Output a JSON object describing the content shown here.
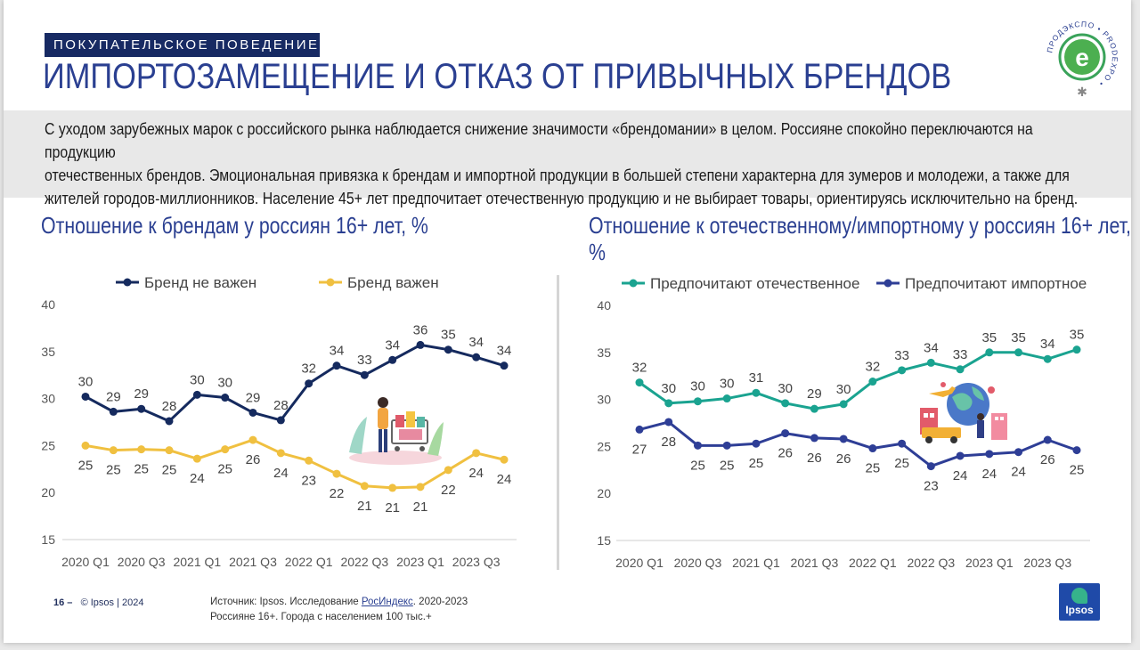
{
  "header": {
    "tag": "ПОКУПАТЕЛЬСКОЕ ПОВЕДЕНИЕ",
    "title": "ИМПОРТОЗАМЕЩЕНИЕ И ОТКАЗ ОТ ПРИВЫЧНЫХ БРЕНДОВ",
    "logo_text": "ПРОДЭКСПО • PRODEXPO •",
    "logo_letter": "e"
  },
  "intro": {
    "line1": "С уходом зарубежных марок с российского рынка наблюдается снижение значимости «брендомании» в целом. Россияне спокойно переключаются на продукцию",
    "line2": "отечественных брендов. Эмоциональная привязка к брендам и импортной продукции в большей степени характерна для зумеров и молодежи, а также для",
    "line3": "жителей городов-миллионников. Население 45+ лет предпочитает отечественную продукцию и не выбирает товары, ориентируясь исключительно на бренд."
  },
  "footer": {
    "page_number": "16 –",
    "copyright": "© Ipsos | 2024",
    "source_prefix": "Источник: Ipsos. Исследование ",
    "source_link": "РосИндекс",
    "source_suffix": ". 2020-2023",
    "source_line2": "Россияне 16+. Города с населением 100 тыс.+",
    "ipsos_logo": "Ipsos"
  },
  "colors": {
    "navy": "#152a5e",
    "yellow": "#f0c040",
    "teal": "#1aa390",
    "blue": "#2e3e96",
    "title_blue": "#2a3f91"
  },
  "chart_data": [
    {
      "type": "line",
      "title": "Отношение к брендам у россиян 16+ лет, %",
      "title_line2": "",
      "ylim": [
        15,
        40
      ],
      "yticks": [
        15,
        20,
        25,
        30,
        35,
        40
      ],
      "x": [
        "2020 Q1",
        "2020 Q2",
        "2020 Q3",
        "2020 Q4",
        "2021 Q1",
        "2021 Q2",
        "2021 Q3",
        "2021 Q4",
        "2022 Q1",
        "2022 Q2",
        "2022 Q3",
        "2022 Q4",
        "2023 Q1",
        "2023 Q2",
        "2023 Q3",
        "2023 Q4"
      ],
      "xtick_labels": [
        "2020 Q1",
        "2020 Q3",
        "2021 Q1",
        "2021 Q3",
        "2022 Q1",
        "2022 Q3",
        "2023 Q1",
        "2023 Q3"
      ],
      "legend_position": "top",
      "series": [
        {
          "name": "Бренд не важен",
          "color": "#152a5e",
          "label_pos": "above",
          "values": [
            30.2,
            28.6,
            28.9,
            27.6,
            30.4,
            30.1,
            28.5,
            27.7,
            31.6,
            33.5,
            32.5,
            34.1,
            35.7,
            35.2,
            34.4,
            33.5
          ],
          "labels": [
            "30",
            "29",
            "29",
            "28",
            "30",
            "30",
            "29",
            "28",
            "32",
            "34",
            "33",
            "34",
            "36",
            "35",
            "34",
            "34"
          ]
        },
        {
          "name": "Бренд важен",
          "color": "#f0c040",
          "label_pos": "below",
          "values": [
            25.0,
            24.5,
            24.6,
            24.5,
            23.6,
            24.6,
            25.6,
            24.2,
            23.4,
            22.0,
            20.7,
            20.5,
            20.6,
            22.4,
            24.2,
            23.5
          ],
          "labels": [
            "25",
            "25",
            "25",
            "25",
            "24",
            "25",
            "26",
            "24",
            "23",
            "22",
            "21",
            "21",
            "21",
            "22",
            "24",
            "24"
          ]
        }
      ]
    },
    {
      "type": "line",
      "title": "Отношение к отечественному/импортному у россиян 16+ лет,",
      "title_line2": "%",
      "ylim": [
        15,
        40
      ],
      "yticks": [
        15,
        20,
        25,
        30,
        35,
        40
      ],
      "x": [
        "2020 Q1",
        "2020 Q2",
        "2020 Q3",
        "2020 Q4",
        "2021 Q1",
        "2021 Q2",
        "2021 Q3",
        "2021 Q4",
        "2022 Q1",
        "2022 Q2",
        "2022 Q3",
        "2022 Q4",
        "2023 Q1",
        "2023 Q2",
        "2023 Q3",
        "2023 Q4"
      ],
      "xtick_labels": [
        "2020 Q1",
        "2020 Q3",
        "2021 Q1",
        "2021 Q3",
        "2022 Q1",
        "2022 Q3",
        "2023 Q1",
        "2023 Q3"
      ],
      "legend_position": "top",
      "series": [
        {
          "name": "Предпочитают отечественное",
          "color": "#1aa390",
          "label_pos": "above",
          "values": [
            31.8,
            29.6,
            29.8,
            30.1,
            30.7,
            29.6,
            29.0,
            29.5,
            31.9,
            33.1,
            33.9,
            33.2,
            35.0,
            35.0,
            34.3,
            35.3
          ],
          "labels": [
            "32",
            "30",
            "30",
            "30",
            "31",
            "30",
            "29",
            "30",
            "32",
            "33",
            "34",
            "33",
            "35",
            "35",
            "34",
            "35"
          ]
        },
        {
          "name": "Предпочитают импортное",
          "color": "#2e3e96",
          "label_pos": "below",
          "values": [
            26.8,
            27.6,
            25.1,
            25.1,
            25.3,
            26.4,
            25.9,
            25.8,
            24.8,
            25.3,
            22.9,
            24.0,
            24.2,
            24.4,
            25.7,
            24.6
          ],
          "labels": [
            "27",
            "28",
            "25",
            "25",
            "25",
            "26",
            "26",
            "26",
            "25",
            "25",
            "23",
            "24",
            "24",
            "24",
            "26",
            "25"
          ]
        }
      ]
    }
  ]
}
